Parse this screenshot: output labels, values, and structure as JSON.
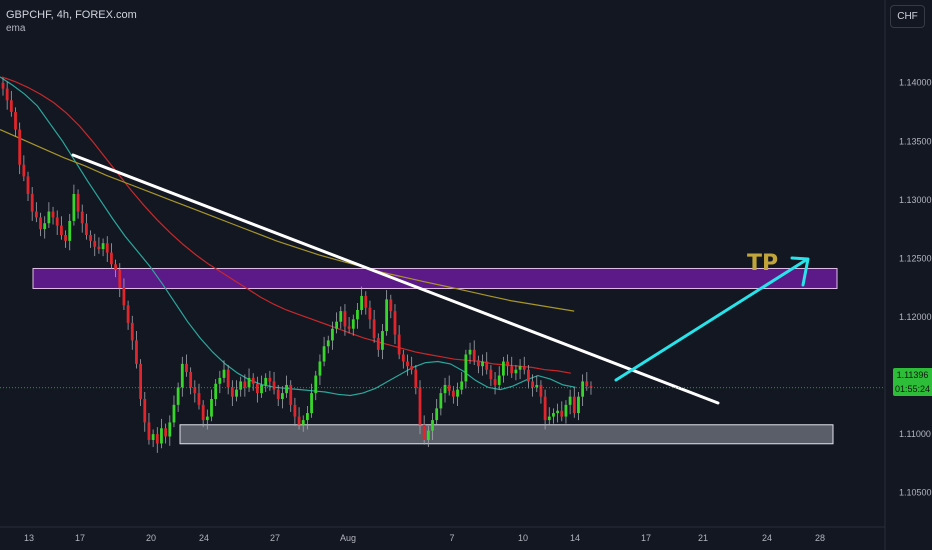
{
  "header": {
    "symbol_title": "GBPCHF, 4h, FOREX.com",
    "indicator_label": "ema",
    "currency_button": "CHF"
  },
  "price_badge": {
    "price": "1.11396",
    "countdown": "01:55:24"
  },
  "colors": {
    "background": "#131722",
    "bull_candle": "#37d62a",
    "bear_candle": "#e0262c",
    "ema_fast": "#2aa89c",
    "ema_mid": "#c8282a",
    "ema_slow": "#a89628",
    "trendline": "#ffffff",
    "target_arrow": "#29e3ea",
    "tp_zone": "#6a1b9a",
    "support_zone": "#b2b5be",
    "tp_text": "#c2a53a"
  },
  "chart_data": {
    "type": "candlestick",
    "symbol": "GBPCHF",
    "timeframe": "4h",
    "source": "FOREX.com",
    "y_axis_ticks": [
      "1.14000",
      "1.13500",
      "1.13000",
      "1.12500",
      "1.12000",
      "1.11500",
      "1.11000",
      "1.10500"
    ],
    "x_axis_ticks": [
      "13",
      "17",
      "20",
      "24",
      "27",
      "Aug",
      "7",
      "10",
      "14",
      "17",
      "21",
      "24",
      "28"
    ],
    "ylim": [
      1.1025,
      1.1445
    ],
    "last_price": 1.11396,
    "close_series": [
      1.1395,
      1.1385,
      1.1375,
      1.136,
      1.133,
      1.132,
      1.1305,
      1.129,
      1.1285,
      1.1275,
      1.128,
      1.129,
      1.1285,
      1.1278,
      1.127,
      1.1265,
      1.1282,
      1.1305,
      1.129,
      1.128,
      1.127,
      1.1265,
      1.126,
      1.1258,
      1.1263,
      1.1255,
      1.1245,
      1.124,
      1.1225,
      1.121,
      1.1195,
      1.118,
      1.116,
      1.113,
      1.111,
      1.1095,
      1.11,
      1.1092,
      1.1105,
      1.1098,
      1.111,
      1.1125,
      1.114,
      1.116,
      1.1153,
      1.114,
      1.1135,
      1.1125,
      1.1112,
      1.1115,
      1.113,
      1.1143,
      1.1148,
      1.1155,
      1.114,
      1.1132,
      1.1138,
      1.1145,
      1.114,
      1.1148,
      1.1143,
      1.1135,
      1.1142,
      1.1148,
      1.1145,
      1.1138,
      1.113,
      1.1135,
      1.1142,
      1.1125,
      1.1115,
      1.1108,
      1.1112,
      1.1118,
      1.1135,
      1.115,
      1.1162,
      1.1175,
      1.118,
      1.119,
      1.1196,
      1.1205,
      1.1192,
      1.119,
      1.1198,
      1.1206,
      1.1218,
      1.1208,
      1.1198,
      1.1182,
      1.1172,
      1.1188,
      1.1215,
      1.1205,
      1.1185,
      1.1168,
      1.1162,
      1.1158,
      1.1155,
      1.114,
      1.1108,
      1.1095,
      1.1103,
      1.1112,
      1.1122,
      1.1135,
      1.1142,
      1.1137,
      1.1132,
      1.1138,
      1.1145,
      1.1168,
      1.1172,
      1.1163,
      1.1158,
      1.1162,
      1.1155,
      1.1147,
      1.1142,
      1.115,
      1.1162,
      1.1158,
      1.1152,
      1.1155,
      1.1158,
      1.1155,
      1.1145,
      1.114,
      1.1142,
      1.1132,
      1.1112,
      1.1115,
      1.1118,
      1.112,
      1.1115,
      1.1125,
      1.1132,
      1.1118,
      1.1132,
      1.1145,
      1.1141,
      1.11396
    ],
    "ema_fast": [
      1.1405,
      1.1398,
      1.139,
      1.138,
      1.1365,
      1.135,
      1.1333,
      1.1316,
      1.13,
      1.1284,
      1.1269,
      1.1256,
      1.1243,
      1.1228,
      1.1212,
      1.1196,
      1.1182,
      1.117,
      1.116,
      1.1152,
      1.1146,
      1.1142,
      1.114,
      1.1139,
      1.1138,
      1.1137,
      1.1136,
      1.1134,
      1.1133,
      1.1135,
      1.1139,
      1.1145,
      1.1151,
      1.1157,
      1.1161,
      1.1162,
      1.116,
      1.1154,
      1.1146,
      1.114,
      1.1138,
      1.1141,
      1.1146,
      1.115,
      1.1147,
      1.1142,
      1.114
    ],
    "ema_mid": [
      1.1405,
      1.1401,
      1.1396,
      1.139,
      1.1383,
      1.1374,
      1.1363,
      1.135,
      1.1336,
      1.1322,
      1.1308,
      1.1295,
      1.1283,
      1.1272,
      1.1262,
      1.1253,
      1.1245,
      1.1238,
      1.1231,
      1.1224,
      1.1217,
      1.1211,
      1.1206,
      1.1202,
      1.1198,
      1.1194,
      1.119,
      1.1186,
      1.1182,
      1.1179,
      1.1176,
      1.1173,
      1.117,
      1.1168,
      1.1166,
      1.1164,
      1.1163,
      1.1162,
      1.116,
      1.1159,
      1.1158,
      1.1157,
      1.1155,
      1.1154,
      1.1152
    ],
    "ema_slow": [
      1.136,
      1.1352,
      1.1344,
      1.1336,
      1.1329,
      1.1321,
      1.1314,
      1.1307,
      1.13,
      1.1293,
      1.1286,
      1.1279,
      1.1272,
      1.1265,
      1.1259,
      1.1253,
      1.1248,
      1.1243,
      1.1238,
      1.1234,
      1.123,
      1.1226,
      1.1222,
      1.1218,
      1.1214,
      1.1211,
      1.1208,
      1.1205
    ],
    "annotations": {
      "tp_label": "TP",
      "tp_zone": [
        1.1222,
        1.1238
      ],
      "support_zone": [
        1.1093,
        1.1108
      ],
      "trendline": {
        "from": [
          1.1312,
          "Jul 17"
        ],
        "to": [
          1.1092,
          "Aug 21"
        ]
      }
    },
    "grid": false
  }
}
